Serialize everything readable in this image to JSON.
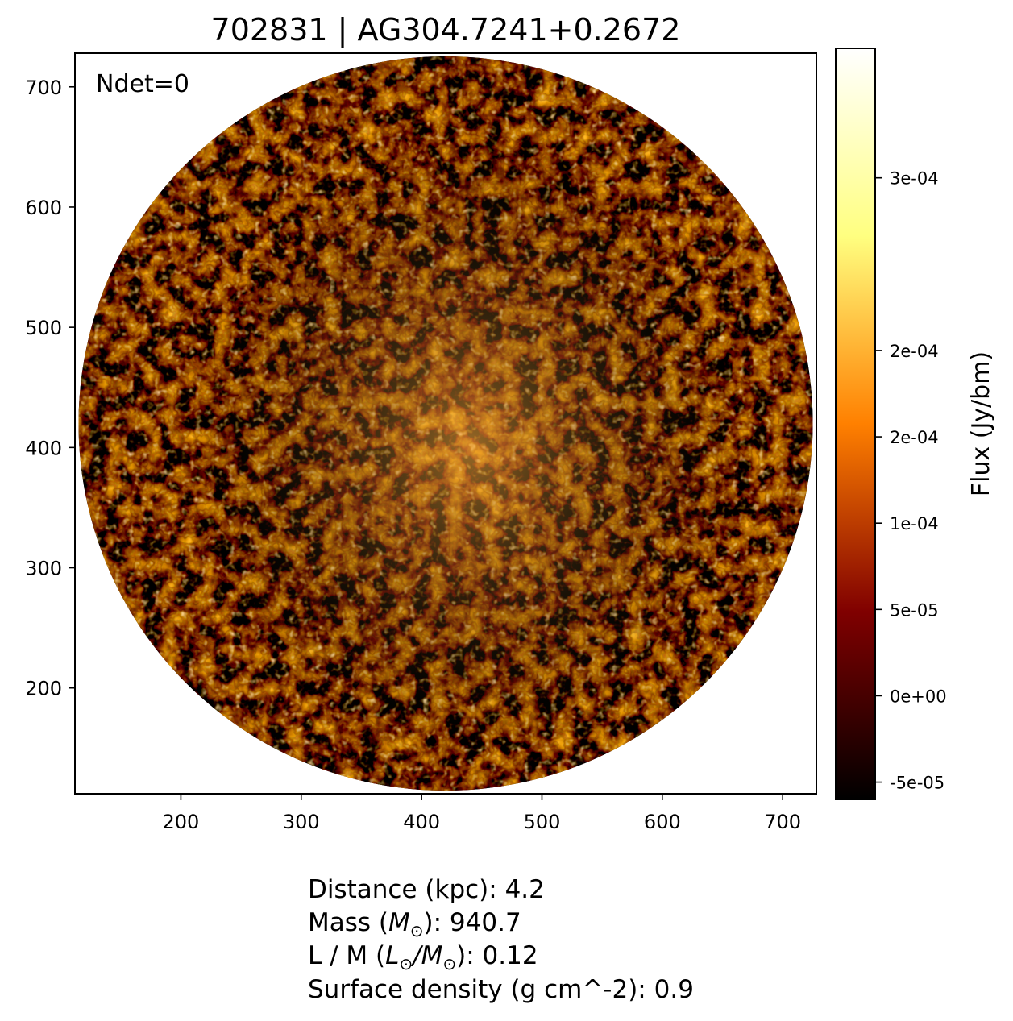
{
  "chart_data": {
    "type": "heatmap",
    "title": "702831 | AG304.7241+0.2672",
    "annotation": "Ndet=0",
    "xlim": [
      112,
      728
    ],
    "ylim": [
      112,
      728
    ],
    "x_ticks": [
      "200",
      "300",
      "400",
      "500",
      "600",
      "700"
    ],
    "y_ticks": [
      "200",
      "300",
      "400",
      "500",
      "600",
      "700"
    ],
    "image_footprint": "circular, centred near (420, 420), radius about 305",
    "colormap": "afmhot",
    "colorbar": {
      "label": "Flux (Jy/bm)",
      "range": [
        -6e-05,
        0.000375
      ],
      "ticks": [
        {
          "value": -5e-05,
          "label": "-5e-05"
        },
        {
          "value": 0,
          "label": "0e+00"
        },
        {
          "value": 5e-05,
          "label": "5e-05"
        },
        {
          "value": 0.0001,
          "label": "1e-04"
        },
        {
          "value": 0.00015,
          "label": "2e-04"
        },
        {
          "value": 0.0002,
          "label": "2e-04"
        },
        {
          "value": 0.0003,
          "label": "3e-04"
        }
      ]
    }
  },
  "info": {
    "distance_label": "Distance (kpc): ",
    "distance": "4.2",
    "mass_prefix": "Mass (",
    "mass_unit": "M",
    "mass_sub": "⊙",
    "mass_suffix": "): ",
    "mass": "940.7",
    "lm_prefix": "L / M (",
    "lm_unit_l": "L",
    "lm_sub_l": "⊙",
    "lm_slash": "/",
    "lm_unit_m": "M",
    "lm_sub_m": "⊙",
    "lm_suffix": "): ",
    "lm": "0.12",
    "surface_density_label": "Surface density (g cm^-2): ",
    "surface_density": "0.9"
  }
}
